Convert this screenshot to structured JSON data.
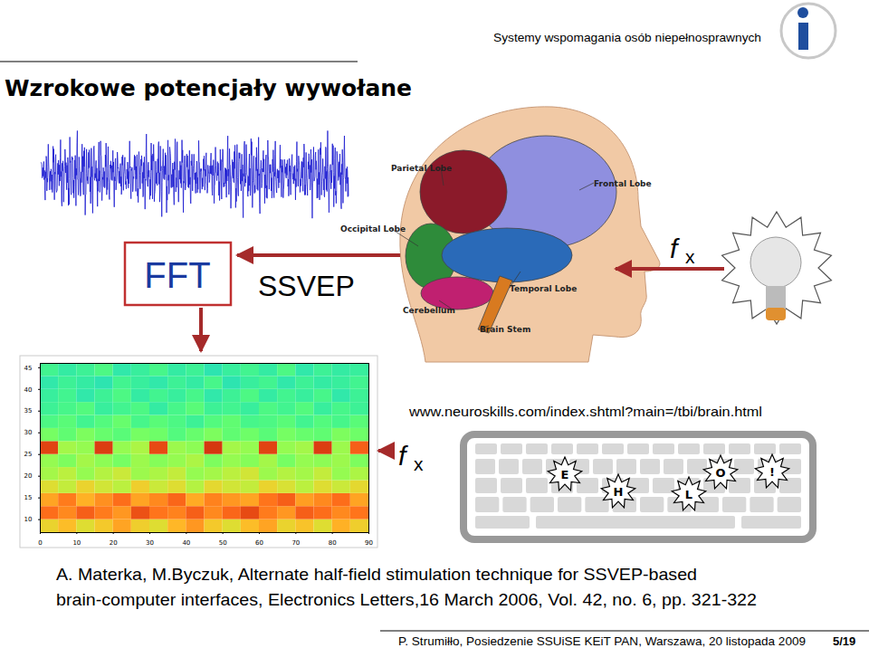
{
  "header": {
    "title": "Wzrokowe potencjały wywołane",
    "topic": "Systemy wspomagania osób niepełnosprawnych"
  },
  "diagram": {
    "fft": "FFT",
    "ssvep": "SSVEP",
    "frequency": {
      "symbol": "f",
      "subscript": "x"
    },
    "brain_labels": [
      "Parietal Lobe",
      "Frontal Lobe",
      "Occipital Lobe",
      "Temporal Lobe",
      "Cerebellum",
      "Brain Stem"
    ],
    "source": "www.neuroskills.com/index.shtml?main=/tbi/brain.html",
    "keyboard_keys": [
      "E",
      "H",
      "L",
      "O",
      "!"
    ]
  },
  "chart_data": {
    "type": "heatmap",
    "x_edges": [
      0,
      5,
      10,
      15,
      20,
      25,
      30,
      35,
      40,
      45,
      50,
      55,
      60,
      65,
      70,
      75,
      80,
      85,
      90
    ],
    "y_edges": [
      7,
      10,
      13,
      16,
      19,
      22,
      25,
      28,
      31,
      34,
      37,
      40,
      43,
      46
    ],
    "cells": [
      [
        0.62,
        0.66,
        0.6,
        0.64,
        0.7,
        0.63,
        0.6,
        0.67,
        0.72,
        0.64,
        0.6,
        0.66,
        0.7,
        0.62,
        0.65,
        0.6,
        0.68,
        0.63
      ],
      [
        0.78,
        0.74,
        0.8,
        0.76,
        0.72,
        0.82,
        0.77,
        0.75,
        0.8,
        0.74,
        0.79,
        0.83,
        0.76,
        0.72,
        0.8,
        0.78,
        0.74,
        0.77
      ],
      [
        0.7,
        0.76,
        0.68,
        0.73,
        0.78,
        0.7,
        0.74,
        0.79,
        0.69,
        0.75,
        0.72,
        0.7,
        0.77,
        0.8,
        0.71,
        0.74,
        0.78,
        0.7
      ],
      [
        0.6,
        0.56,
        0.62,
        0.58,
        0.55,
        0.63,
        0.57,
        0.6,
        0.54,
        0.61,
        0.58,
        0.56,
        0.62,
        0.59,
        0.55,
        0.6,
        0.57,
        0.61
      ],
      [
        0.52,
        0.55,
        0.5,
        0.54,
        0.57,
        0.51,
        0.53,
        0.56,
        0.5,
        0.52,
        0.55,
        0.58,
        0.51,
        0.54,
        0.52,
        0.56,
        0.5,
        0.53
      ],
      [
        0.5,
        0.47,
        0.52,
        0.49,
        0.46,
        0.51,
        0.48,
        0.5,
        0.53,
        0.47,
        0.5,
        0.48,
        0.52,
        0.46,
        0.5,
        0.49,
        0.51,
        0.47
      ],
      [
        0.84,
        0.52,
        0.5,
        0.85,
        0.5,
        0.53,
        0.83,
        0.51,
        0.49,
        0.86,
        0.52,
        0.5,
        0.84,
        0.5,
        0.52,
        0.85,
        0.51,
        0.8
      ],
      [
        0.46,
        0.43,
        0.47,
        0.44,
        0.42,
        0.46,
        0.45,
        0.41,
        0.44,
        0.47,
        0.43,
        0.45,
        0.42,
        0.46,
        0.44,
        0.43,
        0.47,
        0.45
      ],
      [
        0.4,
        0.42,
        0.38,
        0.41,
        0.44,
        0.39,
        0.42,
        0.4,
        0.37,
        0.41,
        0.43,
        0.39,
        0.4,
        0.42,
        0.38,
        0.41,
        0.39,
        0.42
      ],
      [
        0.37,
        0.39,
        0.41,
        0.36,
        0.38,
        0.4,
        0.35,
        0.39,
        0.42,
        0.37,
        0.38,
        0.36,
        0.4,
        0.38,
        0.41,
        0.36,
        0.39,
        0.37
      ],
      [
        0.36,
        0.38,
        0.34,
        0.37,
        0.4,
        0.35,
        0.38,
        0.36,
        0.39,
        0.34,
        0.37,
        0.4,
        0.35,
        0.38,
        0.36,
        0.39,
        0.34,
        0.37
      ],
      [
        0.34,
        0.37,
        0.35,
        0.33,
        0.38,
        0.36,
        0.34,
        0.37,
        0.35,
        0.39,
        0.33,
        0.36,
        0.38,
        0.34,
        0.37,
        0.35,
        0.36,
        0.38
      ],
      [
        0.38,
        0.35,
        0.37,
        0.4,
        0.34,
        0.36,
        0.39,
        0.35,
        0.37,
        0.33,
        0.36,
        0.38,
        0.35,
        0.4,
        0.34,
        0.37,
        0.35,
        0.36
      ]
    ],
    "xlim": [
      0,
      90
    ],
    "xticks": [
      0,
      10,
      20,
      30,
      40,
      50,
      60,
      70,
      80,
      90
    ],
    "ylim": [
      7,
      46
    ],
    "yticks": [
      10,
      15,
      20,
      25,
      30,
      35,
      40,
      45
    ],
    "zlim": [
      0,
      1
    ]
  },
  "reference": [
    "A. Materka, M.Byczuk, Alternate half-field stimulation technique for SSVEP-based",
    "brain-computer interfaces, Electronics Letters,16 March 2006, Vol. 42, no. 6, pp. 321-322"
  ],
  "footer": {
    "text": "P. Strumiłło, Posiedzenie SSUiSE KEiT PAN, Warszawa, 20 listopada 2009",
    "page": "5/19"
  }
}
